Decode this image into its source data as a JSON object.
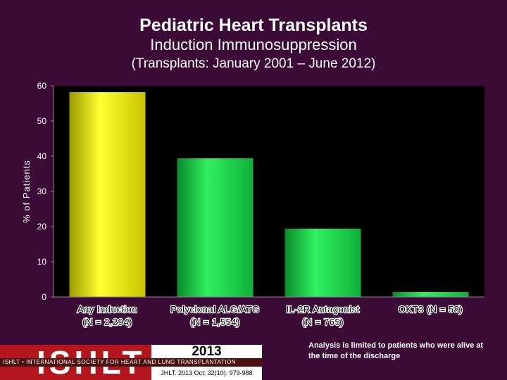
{
  "titles": {
    "line1": "Pediatric Heart Transplants",
    "line2": "Induction Immunosuppression",
    "line3": "(Transplants: January 2001 – June 2012)"
  },
  "chart_data": {
    "type": "bar",
    "title": "Pediatric Heart Transplants Induction Immunosuppression (Transplants: January 2001 – June 2012)",
    "xlabel": "",
    "ylabel": "% of Patients",
    "ylim": [
      0,
      60
    ],
    "yticks": [
      0,
      10,
      20,
      30,
      40,
      50,
      60
    ],
    "grid": false,
    "categories": [
      [
        "Any Induction",
        "(N = 2,294)"
      ],
      [
        "Polyclonal ALG/ATG",
        "(N = 1,554)"
      ],
      [
        "IL-2R Antagonist",
        "(N = 765)"
      ],
      [
        "OKT3 (N = 58)"
      ]
    ],
    "values": [
      58.2,
      39.4,
      19.4,
      1.4
    ],
    "colors": [
      "#f2ef00",
      "#16d64a",
      "#16d64a",
      "#16d64a"
    ]
  },
  "footer": {
    "logo": "ISHLT",
    "society": "ISHLT • INTERNATIONAL SOCIETY FOR HEART AND LUNG TRANSPLANTATION",
    "year": "2013",
    "citation": "JHLT. 2013 Oct; 32(10): 979-988",
    "note": "Analysis is limited to patients who were alive at the time of the discharge"
  }
}
